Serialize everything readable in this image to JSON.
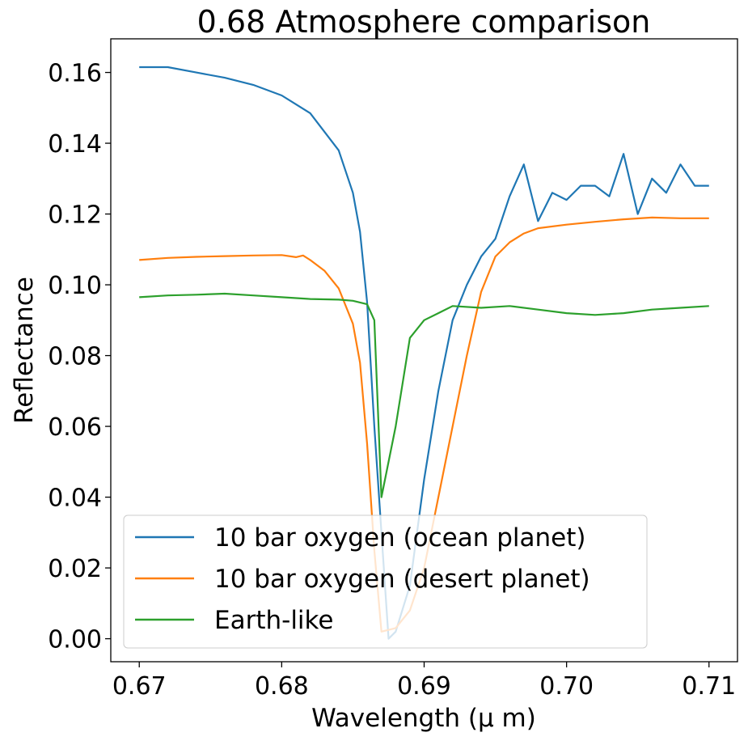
{
  "chart_data": {
    "type": "line",
    "title": "0.68 Atmosphere comparison",
    "xlabel": "Wavelength (μ m)",
    "ylabel": "Reflectance",
    "xlim": [
      0.668,
      0.712
    ],
    "ylim": [
      -0.0065,
      0.1695
    ],
    "xticks": [
      0.67,
      0.68,
      0.69,
      0.7,
      0.71
    ],
    "xtick_labels": [
      "0.67",
      "0.68",
      "0.69",
      "0.70",
      "0.71"
    ],
    "yticks": [
      0.0,
      0.02,
      0.04,
      0.06,
      0.08,
      0.1,
      0.12,
      0.14,
      0.16
    ],
    "ytick_labels": [
      "0.00",
      "0.02",
      "0.04",
      "0.06",
      "0.08",
      "0.10",
      "0.12",
      "0.14",
      "0.16"
    ],
    "grid": false,
    "legend_position": "lower-left",
    "series": [
      {
        "name": "10 bar oxygen (ocean planet)",
        "color": "#1f77b4",
        "x": [
          0.67,
          0.672,
          0.674,
          0.676,
          0.678,
          0.68,
          0.682,
          0.684,
          0.685,
          0.6855,
          0.686,
          0.6865,
          0.687,
          0.6875,
          0.688,
          0.689,
          0.69,
          0.691,
          0.692,
          0.693,
          0.694,
          0.695,
          0.696,
          0.697,
          0.698,
          0.699,
          0.7,
          0.701,
          0.702,
          0.703,
          0.704,
          0.705,
          0.706,
          0.707,
          0.708,
          0.709,
          0.71
        ],
        "y": [
          0.1615,
          0.1615,
          0.16,
          0.1585,
          0.1565,
          0.1535,
          0.1485,
          0.138,
          0.126,
          0.115,
          0.095,
          0.06,
          0.03,
          0.0,
          0.002,
          0.015,
          0.045,
          0.07,
          0.09,
          0.1,
          0.108,
          0.113,
          0.125,
          0.134,
          0.118,
          0.126,
          0.124,
          0.128,
          0.128,
          0.125,
          0.137,
          0.12,
          0.13,
          0.126,
          0.134,
          0.128,
          0.128
        ]
      },
      {
        "name": "10 bar oxygen (desert planet)",
        "color": "#ff7f0e",
        "x": [
          0.67,
          0.672,
          0.674,
          0.676,
          0.678,
          0.68,
          0.681,
          0.6815,
          0.682,
          0.683,
          0.684,
          0.685,
          0.6855,
          0.686,
          0.6865,
          0.687,
          0.688,
          0.689,
          0.69,
          0.691,
          0.692,
          0.693,
          0.694,
          0.695,
          0.696,
          0.697,
          0.698,
          0.7,
          0.702,
          0.704,
          0.706,
          0.708,
          0.71
        ],
        "y": [
          0.107,
          0.1076,
          0.1079,
          0.1081,
          0.1083,
          0.1084,
          0.1078,
          0.1083,
          0.107,
          0.104,
          0.099,
          0.089,
          0.078,
          0.055,
          0.025,
          0.002,
          0.003,
          0.008,
          0.02,
          0.04,
          0.06,
          0.08,
          0.098,
          0.108,
          0.112,
          0.1145,
          0.116,
          0.117,
          0.1178,
          0.1185,
          0.119,
          0.1188,
          0.1188
        ]
      },
      {
        "name": "Earth-like",
        "color": "#2ca02c",
        "x": [
          0.67,
          0.672,
          0.674,
          0.676,
          0.678,
          0.68,
          0.682,
          0.684,
          0.685,
          0.686,
          0.6865,
          0.687,
          0.688,
          0.689,
          0.69,
          0.691,
          0.692,
          0.694,
          0.696,
          0.698,
          0.7,
          0.702,
          0.704,
          0.706,
          0.708,
          0.71
        ],
        "y": [
          0.0965,
          0.097,
          0.0972,
          0.0975,
          0.097,
          0.0965,
          0.096,
          0.0958,
          0.0955,
          0.0945,
          0.09,
          0.04,
          0.06,
          0.085,
          0.09,
          0.092,
          0.094,
          0.0935,
          0.094,
          0.093,
          0.092,
          0.0915,
          0.092,
          0.093,
          0.0935,
          0.094
        ]
      }
    ]
  }
}
